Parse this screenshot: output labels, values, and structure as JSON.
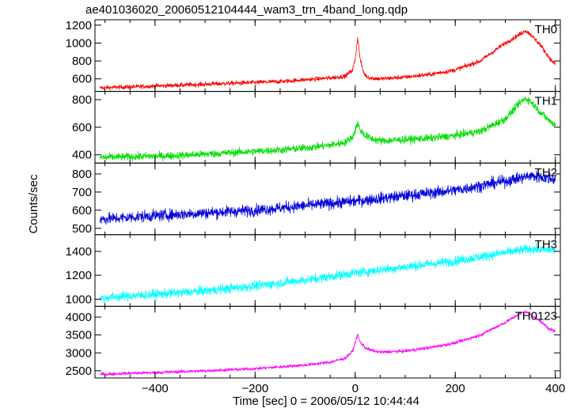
{
  "chart_data": {
    "type": "line",
    "title": "ae401036020_20060512104444_wam3_trn_4band_long.qdp",
    "xlabel": "Time [sec] 0 = 2006/05/12 10:44:44",
    "ylabel": "Counts/sec",
    "xlim": [
      -520,
      410
    ],
    "x_ticks": [
      -400,
      -200,
      0,
      200,
      400
    ],
    "grid": false,
    "panels": [
      {
        "name": "TH0",
        "color": "#ff0000",
        "ylim": [
          460,
          1260
        ],
        "y_ticks": [
          600,
          800,
          1000,
          1200
        ],
        "x": [
          -510,
          -450,
          -400,
          -350,
          -300,
          -250,
          -200,
          -150,
          -100,
          -50,
          -20,
          -5,
          0,
          5,
          10,
          15,
          20,
          30,
          50,
          100,
          150,
          200,
          250,
          300,
          330,
          340,
          350,
          370,
          390,
          400
        ],
        "y": [
          500,
          510,
          520,
          530,
          540,
          550,
          560,
          570,
          590,
          610,
          630,
          700,
          820,
          1060,
          820,
          700,
          640,
          610,
          600,
          620,
          650,
          700,
          800,
          1000,
          1100,
          1140,
          1100,
          980,
          820,
          760
        ],
        "noise": 25
      },
      {
        "name": "TH1",
        "color": "#00dd00",
        "ylim": [
          340,
          860
        ],
        "y_ticks": [
          400,
          600,
          800
        ],
        "x": [
          -510,
          -450,
          -400,
          -350,
          -300,
          -250,
          -200,
          -150,
          -100,
          -50,
          -20,
          -5,
          0,
          5,
          10,
          20,
          30,
          50,
          100,
          150,
          200,
          250,
          300,
          330,
          340,
          350,
          370,
          390,
          400
        ],
        "y": [
          380,
          385,
          390,
          395,
          405,
          415,
          425,
          435,
          450,
          470,
          490,
          530,
          580,
          630,
          580,
          540,
          520,
          500,
          510,
          520,
          540,
          570,
          660,
          780,
          810,
          790,
          710,
          640,
          620
        ],
        "noise": 28
      },
      {
        "name": "TH2",
        "color": "#0000dd",
        "ylim": [
          465,
          860
        ],
        "y_ticks": [
          500,
          600,
          700,
          800
        ],
        "x": [
          -510,
          -400,
          -300,
          -200,
          -100,
          0,
          100,
          200,
          300,
          350,
          400
        ],
        "y": [
          550,
          570,
          585,
          600,
          625,
          650,
          680,
          710,
          760,
          790,
          770
        ],
        "noise": 32
      },
      {
        "name": "TH3",
        "color": "#00ffff",
        "ylim": [
          940,
          1540
        ],
        "y_ticks": [
          1000,
          1200,
          1400
        ],
        "x": [
          -510,
          -400,
          -300,
          -200,
          -100,
          0,
          100,
          200,
          300,
          350,
          400
        ],
        "y": [
          1010,
          1040,
          1070,
          1110,
          1160,
          1220,
          1270,
          1320,
          1390,
          1420,
          1410
        ],
        "noise": 40
      },
      {
        "name": "TH0123",
        "color": "#ff00ff",
        "ylim": [
          2300,
          4300
        ],
        "y_ticks": [
          2500,
          3000,
          3500,
          4000
        ],
        "x": [
          -510,
          -450,
          -400,
          -300,
          -200,
          -100,
          -50,
          -20,
          -5,
          0,
          5,
          10,
          20,
          30,
          50,
          100,
          150,
          200,
          250,
          300,
          330,
          340,
          350,
          370,
          390,
          400
        ],
        "y": [
          2400,
          2430,
          2450,
          2500,
          2560,
          2660,
          2740,
          2850,
          3050,
          3300,
          3500,
          3300,
          3150,
          3080,
          3020,
          3050,
          3150,
          3280,
          3500,
          3850,
          4100,
          4150,
          4080,
          3880,
          3650,
          3600
        ],
        "noise": 45
      }
    ]
  }
}
